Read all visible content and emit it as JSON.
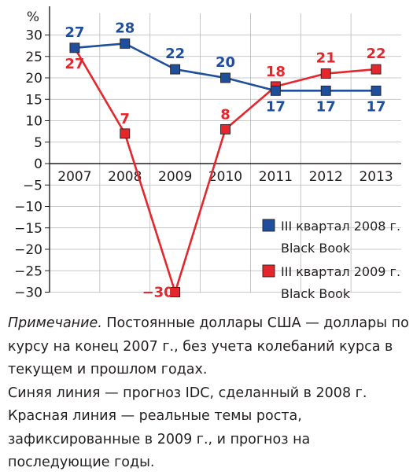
{
  "chart_data": {
    "type": "line",
    "y_unit_label": "%",
    "categories": [
      "2007",
      "2008",
      "2009",
      "2010",
      "2011",
      "2012",
      "2013"
    ],
    "ylim": [
      -30,
      30
    ],
    "y_ticks": [
      30,
      25,
      20,
      15,
      10,
      5,
      0,
      -5,
      -10,
      -15,
      -20,
      -25,
      -30
    ],
    "y_tick_labels": [
      "30",
      "25",
      "20",
      "15",
      "10",
      "5",
      "0",
      "−5",
      "−10",
      "−15",
      "−20",
      "−25",
      "−30"
    ],
    "series": [
      {
        "name": "III квартал 2008 г. Black Book",
        "legend_lines": [
          "III квартал 2008 г.",
          "Black Book"
        ],
        "color": "#1f4e9c",
        "values": [
          27,
          28,
          22,
          20,
          17,
          17,
          17
        ],
        "labels": [
          "27",
          "28",
          "22",
          "20",
          "17",
          "17",
          "17"
        ]
      },
      {
        "name": "III квартал 2009 г. Black Book",
        "legend_lines": [
          "III квартал 2009 г.",
          "Black Book"
        ],
        "color": "#e5262c",
        "values": [
          27,
          7,
          -30,
          8,
          18,
          21,
          22
        ],
        "labels": [
          "27",
          "7",
          "−30",
          "8",
          "18",
          "21",
          "22"
        ]
      }
    ],
    "grid": true,
    "legend": "bottom-right"
  },
  "note": {
    "line1_italic": "Примечание.",
    "line1_rest": " Постоянные доллары США — доллары по курсу на конец 2007 г., без учета колебаний курса в текущем и прошлом годах.",
    "line2": "Синяя линия — прогноз IDC, сделанный в 2008 г.",
    "line3": "Красная линия — реальные темы роста, зафиксированные в 2009 г., и прогноз на последующие годы."
  }
}
